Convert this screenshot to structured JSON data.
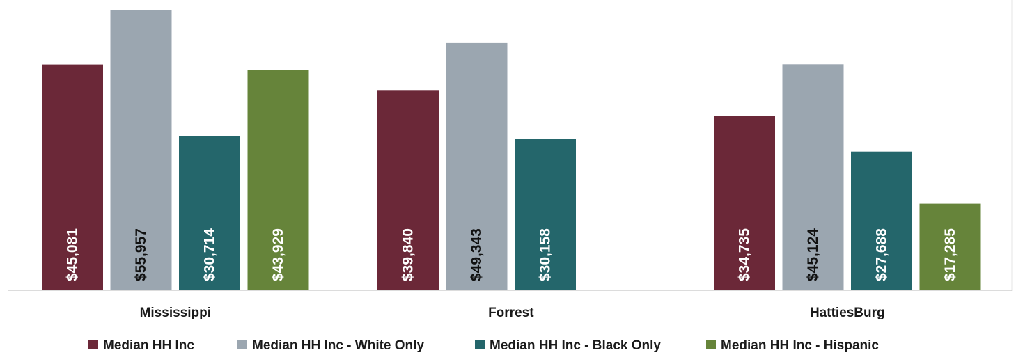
{
  "chart_data": {
    "type": "bar",
    "categories": [
      "Mississippi",
      "Forrest",
      "HattiesBurg"
    ],
    "series": [
      {
        "name": "Median HH Inc",
        "color": "#6b2838",
        "values": [
          45081,
          39840,
          34735
        ],
        "labels": [
          "$45,081",
          "$39,840",
          "$34,735"
        ],
        "label_color": "#ffffff"
      },
      {
        "name": "Median HH Inc - White Only",
        "color": "#9ba6b0",
        "values": [
          55957,
          49343,
          45124
        ],
        "labels": [
          "$55,957",
          "$49,343",
          "$45,124"
        ],
        "label_color": "#111111"
      },
      {
        "name": "Median HH Inc - Black Only",
        "color": "#24666b",
        "values": [
          30714,
          30158,
          27688
        ],
        "labels": [
          "$30,714",
          "$30,158",
          "$27,688"
        ],
        "label_color": "#ffffff"
      },
      {
        "name": "Median HH Inc - Hispanic",
        "color": "#66843a",
        "values": [
          43929,
          null,
          17285
        ],
        "labels": [
          "$43,929",
          "",
          "$17,285"
        ],
        "label_color": "#ffffff"
      }
    ],
    "ylim": [
      0,
      56000
    ],
    "grid": false,
    "legend_position": "bottom",
    "data_labels": "inside-base-rotated"
  }
}
